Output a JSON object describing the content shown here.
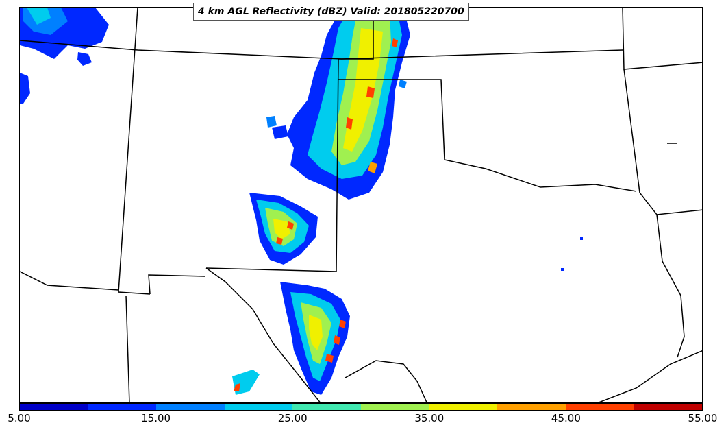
{
  "title": "4 km AGL Reflectivity (dBZ) Valid: 201805220700",
  "colorbar": {
    "colors": [
      "#0000c8",
      "#0028ff",
      "#0080ff",
      "#00ccee",
      "#40e8b0",
      "#a0f050",
      "#f0f000",
      "#ffa000",
      "#ff4000",
      "#c00000"
    ],
    "tick_labels": [
      "5.00",
      "15.00",
      "25.00",
      "35.00",
      "45.00",
      "55.00"
    ]
  }
}
